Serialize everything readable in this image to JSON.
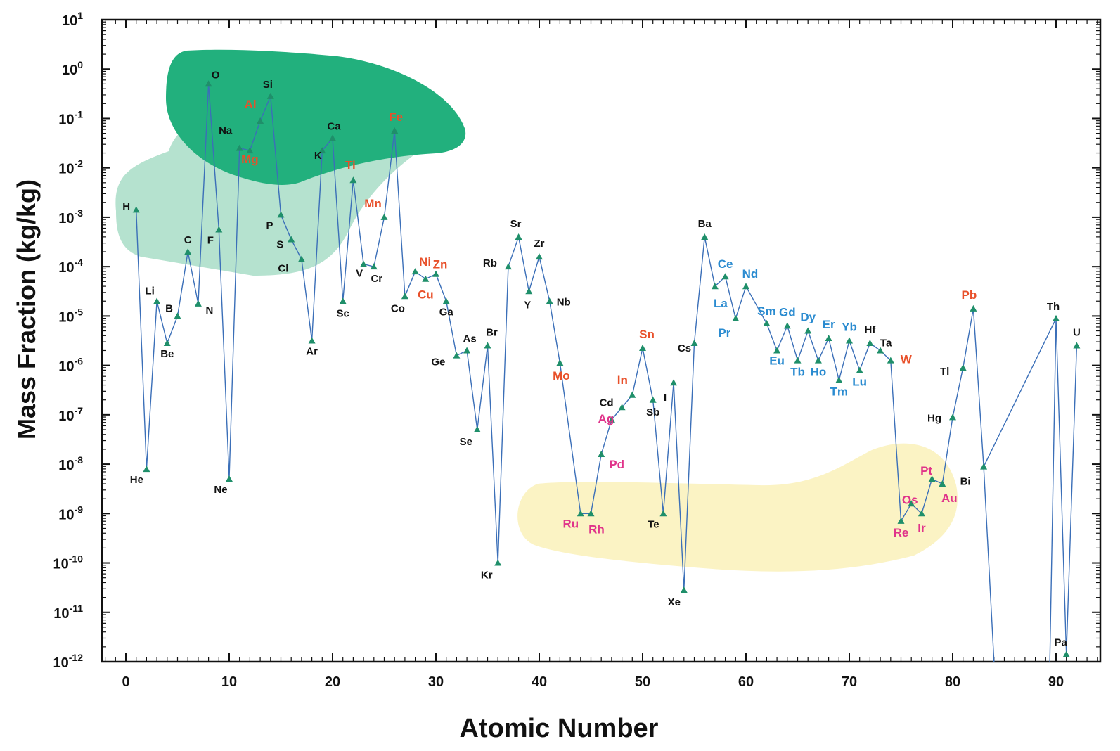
{
  "chart_data": {
    "type": "line",
    "title": "",
    "xlabel": "Atomic Number",
    "ylabel": "Mass Fraction (kg/kg)",
    "xlim": [
      -2,
      94
    ],
    "ylim_log10": [
      -12,
      1
    ],
    "yscale": "log",
    "grid": false,
    "x_ticks": [
      "0",
      "10",
      "20",
      "30",
      "40",
      "50",
      "60",
      "70",
      "80",
      "90"
    ],
    "y_ticks": [
      {
        "base": "10",
        "exp": "1"
      },
      {
        "base": "10",
        "exp": "0"
      },
      {
        "base": "10",
        "exp": "-1"
      },
      {
        "base": "10",
        "exp": "-2"
      },
      {
        "base": "10",
        "exp": "-3"
      },
      {
        "base": "10",
        "exp": "-4"
      },
      {
        "base": "10",
        "exp": "-5"
      },
      {
        "base": "10",
        "exp": "-6"
      },
      {
        "base": "10",
        "exp": "-7"
      },
      {
        "base": "10",
        "exp": "-8"
      },
      {
        "base": "10",
        "exp": "-9"
      },
      {
        "base": "10",
        "exp": "-10"
      },
      {
        "base": "10",
        "exp": "-11"
      },
      {
        "base": "10",
        "exp": "-12"
      }
    ],
    "colors": {
      "line": "#3b6fb8",
      "marker": "#1f8f6a",
      "rock_forming": "#22b07d",
      "rock_forming_light": "#b5e2cf",
      "precious": "#fbf3c4",
      "black": "#111111",
      "red": "#e8502a",
      "blue": "#2a8bd0",
      "magenta": "#e0338a"
    },
    "series_color_key": {
      "black": "#111111",
      "red": "#e8502a",
      "blue": "#2a8bd0",
      "magenta": "#e0338a"
    },
    "points": [
      {
        "z": 1,
        "el": "H",
        "log": -2.85,
        "c": "black"
      },
      {
        "z": 2,
        "el": "He",
        "log": -8.1,
        "c": "black"
      },
      {
        "z": 3,
        "el": "Li",
        "log": -4.7,
        "c": "black"
      },
      {
        "z": 4,
        "el": "Be",
        "log": -5.55,
        "c": "black"
      },
      {
        "z": 5,
        "el": "B",
        "log": -5.0,
        "c": "black"
      },
      {
        "z": 6,
        "el": "C",
        "log": -3.7,
        "c": "black"
      },
      {
        "z": 7,
        "el": "N",
        "log": -4.75,
        "c": "black"
      },
      {
        "z": 8,
        "el": "O",
        "log": -0.3,
        "c": "black"
      },
      {
        "z": 9,
        "el": "F",
        "log": -3.25,
        "c": "black"
      },
      {
        "z": 10,
        "el": "Ne",
        "log": -8.3,
        "c": "black"
      },
      {
        "z": 11,
        "el": "Na",
        "log": -1.6,
        "c": "black"
      },
      {
        "z": 12,
        "el": "Mg",
        "log": -1.65,
        "c": "red"
      },
      {
        "z": 13,
        "el": "Al",
        "log": -1.05,
        "c": "red"
      },
      {
        "z": 14,
        "el": "Si",
        "log": -0.55,
        "c": "black"
      },
      {
        "z": 15,
        "el": "P",
        "log": -2.95,
        "c": "black"
      },
      {
        "z": 16,
        "el": "S",
        "log": -3.45,
        "c": "black"
      },
      {
        "z": 17,
        "el": "Cl",
        "log": -3.85,
        "c": "black"
      },
      {
        "z": 18,
        "el": "Ar",
        "log": -5.5,
        "c": "black"
      },
      {
        "z": 19,
        "el": "K",
        "log": -1.65,
        "c": "black"
      },
      {
        "z": 20,
        "el": "Ca",
        "log": -1.4,
        "c": "black"
      },
      {
        "z": 21,
        "el": "Sc",
        "log": -4.7,
        "c": "black"
      },
      {
        "z": 22,
        "el": "Ti",
        "log": -2.25,
        "c": "red"
      },
      {
        "z": 23,
        "el": "V",
        "log": -3.95,
        "c": "black"
      },
      {
        "z": 24,
        "el": "Cr",
        "log": -4.0,
        "c": "black"
      },
      {
        "z": 25,
        "el": "Mn",
        "log": -3.0,
        "c": "red"
      },
      {
        "z": 26,
        "el": "Fe",
        "log": -1.25,
        "c": "red"
      },
      {
        "z": 27,
        "el": "Co",
        "log": -4.6,
        "c": "black"
      },
      {
        "z": 28,
        "el": "Ni",
        "log": -4.1,
        "c": "red"
      },
      {
        "z": 29,
        "el": "Cu",
        "log": -4.25,
        "c": "red"
      },
      {
        "z": 30,
        "el": "Zn",
        "log": -4.15,
        "c": "red"
      },
      {
        "z": 31,
        "el": "Ga",
        "log": -4.7,
        "c": "black"
      },
      {
        "z": 32,
        "el": "Ge",
        "log": -5.8,
        "c": "black"
      },
      {
        "z": 33,
        "el": "As",
        "log": -5.7,
        "c": "black"
      },
      {
        "z": 34,
        "el": "Se",
        "log": -7.3,
        "c": "black"
      },
      {
        "z": 35,
        "el": "Br",
        "log": -5.6,
        "c": "black"
      },
      {
        "z": 36,
        "el": "Kr",
        "log": -10.0,
        "c": "black"
      },
      {
        "z": 37,
        "el": "Rb",
        "log": -4.0,
        "c": "black"
      },
      {
        "z": 38,
        "el": "Sr",
        "log": -3.4,
        "c": "black"
      },
      {
        "z": 39,
        "el": "Y",
        "log": -4.5,
        "c": "black"
      },
      {
        "z": 40,
        "el": "Zr",
        "log": -3.8,
        "c": "black"
      },
      {
        "z": 41,
        "el": "Nb",
        "log": -4.7,
        "c": "black"
      },
      {
        "z": 42,
        "el": "Mo",
        "log": -5.95,
        "c": "red"
      },
      {
        "z": 44,
        "el": "Ru",
        "log": -9.0,
        "c": "magenta"
      },
      {
        "z": 45,
        "el": "Rh",
        "log": -9.0,
        "c": "magenta"
      },
      {
        "z": 46,
        "el": "Pd",
        "log": -7.8,
        "c": "magenta"
      },
      {
        "z": 47,
        "el": "Ag",
        "log": -7.1,
        "c": "magenta"
      },
      {
        "z": 48,
        "el": "Cd",
        "log": -6.85,
        "c": "black"
      },
      {
        "z": 49,
        "el": "In",
        "log": -6.6,
        "c": "red"
      },
      {
        "z": 50,
        "el": "Sn",
        "log": -5.65,
        "c": "red"
      },
      {
        "z": 51,
        "el": "Sb",
        "log": -6.7,
        "c": "black"
      },
      {
        "z": 52,
        "el": "Te",
        "log": -9.0,
        "c": "black"
      },
      {
        "z": 53,
        "el": "I",
        "log": -6.35,
        "c": "black"
      },
      {
        "z": 54,
        "el": "Xe",
        "log": -10.55,
        "c": "black"
      },
      {
        "z": 55,
        "el": "Cs",
        "log": -5.55,
        "c": "black"
      },
      {
        "z": 56,
        "el": "Ba",
        "log": -3.4,
        "c": "black"
      },
      {
        "z": 57,
        "el": "La",
        "log": -4.4,
        "c": "blue"
      },
      {
        "z": 58,
        "el": "Ce",
        "log": -4.2,
        "c": "blue"
      },
      {
        "z": 59,
        "el": "Pr",
        "log": -5.05,
        "c": "blue"
      },
      {
        "z": 60,
        "el": "Nd",
        "log": -4.4,
        "c": "blue"
      },
      {
        "z": 62,
        "el": "Sm",
        "log": -5.15,
        "c": "blue"
      },
      {
        "z": 63,
        "el": "Eu",
        "log": -5.7,
        "c": "blue"
      },
      {
        "z": 64,
        "el": "Gd",
        "log": -5.2,
        "c": "blue"
      },
      {
        "z": 65,
        "el": "Tb",
        "log": -5.9,
        "c": "blue"
      },
      {
        "z": 66,
        "el": "Dy",
        "log": -5.3,
        "c": "blue"
      },
      {
        "z": 67,
        "el": "Ho",
        "log": -5.9,
        "c": "blue"
      },
      {
        "z": 68,
        "el": "Er",
        "log": -5.45,
        "c": "blue"
      },
      {
        "z": 69,
        "el": "Tm",
        "log": -6.3,
        "c": "blue"
      },
      {
        "z": 70,
        "el": "Yb",
        "log": -5.5,
        "c": "blue"
      },
      {
        "z": 71,
        "el": "Lu",
        "log": -6.1,
        "c": "blue"
      },
      {
        "z": 72,
        "el": "Hf",
        "log": -5.55,
        "c": "black"
      },
      {
        "z": 73,
        "el": "Ta",
        "log": -5.7,
        "c": "black"
      },
      {
        "z": 74,
        "el": "W",
        "log": -5.9,
        "c": "red"
      },
      {
        "z": 75,
        "el": "Re",
        "log": -9.15,
        "c": "magenta"
      },
      {
        "z": 76,
        "el": "Os",
        "log": -8.8,
        "c": "magenta"
      },
      {
        "z": 77,
        "el": "Ir",
        "log": -9.0,
        "c": "magenta"
      },
      {
        "z": 78,
        "el": "Pt",
        "log": -8.3,
        "c": "magenta"
      },
      {
        "z": 79,
        "el": "Au",
        "log": -8.4,
        "c": "magenta"
      },
      {
        "z": 80,
        "el": "Hg",
        "log": -7.05,
        "c": "black"
      },
      {
        "z": 81,
        "el": "Tl",
        "log": -6.05,
        "c": "black"
      },
      {
        "z": 82,
        "el": "Pb",
        "log": -4.85,
        "c": "red"
      },
      {
        "z": 83,
        "el": "Bi",
        "log": -8.05,
        "c": "black"
      },
      {
        "z": 90,
        "el": "Th",
        "log": -5.05,
        "c": "black"
      },
      {
        "z": 91,
        "el": "Pa",
        "log": -11.85,
        "c": "black"
      },
      {
        "z": 92,
        "el": "U",
        "log": -5.6,
        "c": "black"
      }
    ]
  }
}
